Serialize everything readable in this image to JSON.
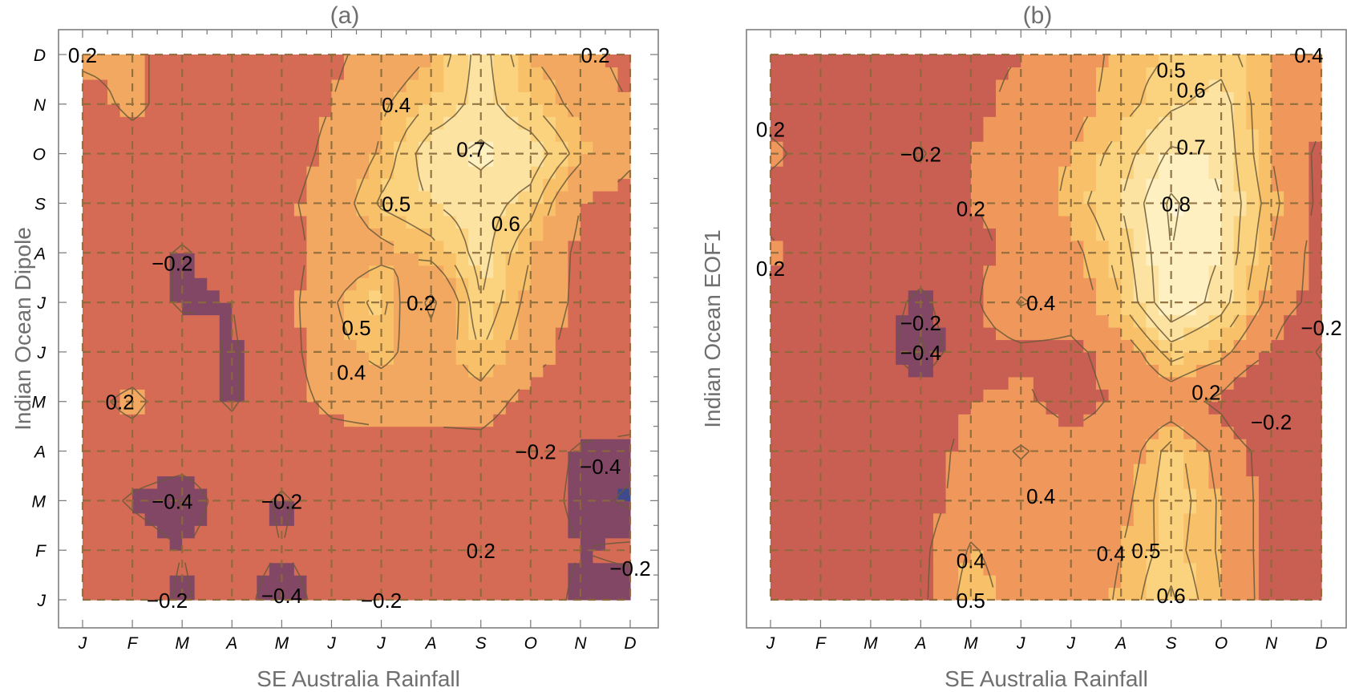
{
  "chart_data": [
    {
      "type": "heatmap",
      "subtype": "contour",
      "title": "(a)",
      "xlabel": "SE Australia Rainfall",
      "ylabel": "Indian Ocean Dipole",
      "x_ticks": [
        "J",
        "F",
        "M",
        "A",
        "M",
        "J",
        "J",
        "A",
        "S",
        "O",
        "N",
        "D"
      ],
      "y_ticks": [
        "J",
        "F",
        "M",
        "A",
        "M",
        "J",
        "J",
        "A",
        "S",
        "O",
        "N",
        "D"
      ],
      "show_y_ticks": true,
      "grid": true,
      "contour_levels": [
        -0.4,
        -0.2,
        0.2,
        0.4,
        0.5,
        0.6,
        0.7,
        0.8
      ],
      "z_rows_bottom_to_top": [
        [
          0.0,
          0.0,
          -0.25,
          0.0,
          -0.42,
          0.0,
          -0.15,
          0.0,
          0.05,
          0.05,
          -0.3,
          -0.3
        ],
        [
          0.0,
          0.0,
          -0.2,
          0.0,
          -0.2,
          0.0,
          0.0,
          0.05,
          0.1,
          0.0,
          -0.2,
          -0.15
        ],
        [
          0.0,
          -0.25,
          -0.42,
          0.0,
          -0.25,
          0.0,
          0.0,
          0.0,
          0.05,
          0.0,
          -0.3,
          -0.45
        ],
        [
          0.05,
          0.05,
          0.0,
          0.0,
          0.0,
          0.1,
          0.1,
          0.1,
          0.1,
          0.0,
          -0.25,
          -0.3
        ],
        [
          0.1,
          0.28,
          0.0,
          -0.25,
          0.1,
          0.25,
          0.3,
          0.3,
          0.33,
          0.1,
          0.05,
          0.0
        ],
        [
          0.0,
          0.0,
          0.0,
          -0.25,
          0.1,
          0.35,
          0.45,
          0.3,
          0.5,
          0.3,
          0.1,
          0.05
        ],
        [
          0.0,
          0.0,
          -0.25,
          -0.2,
          0.1,
          0.38,
          0.55,
          0.15,
          0.6,
          0.35,
          0.15,
          0.1
        ],
        [
          0.05,
          0.0,
          -0.25,
          0.0,
          0.1,
          0.3,
          0.35,
          0.45,
          0.65,
          0.4,
          0.15,
          0.1
        ],
        [
          0.05,
          0.05,
          0.05,
          0.1,
          0.15,
          0.3,
          0.52,
          0.6,
          0.66,
          0.55,
          0.2,
          0.1
        ],
        [
          0.05,
          0.1,
          0.1,
          0.1,
          0.1,
          0.25,
          0.42,
          0.68,
          0.72,
          0.68,
          0.45,
          0.25
        ],
        [
          0.1,
          0.25,
          0.1,
          0.1,
          0.1,
          0.2,
          0.38,
          0.5,
          0.65,
          0.5,
          0.35,
          0.2
        ],
        [
          0.25,
          0.25,
          0.1,
          0.1,
          0.1,
          0.15,
          0.3,
          0.4,
          0.65,
          0.4,
          0.3,
          0.1
        ]
      ],
      "annotations": [
        {
          "text": "0.2",
          "x": 0.0,
          "y": 11
        },
        {
          "text": "0.2",
          "x": 10.3,
          "y": 11
        },
        {
          "text": "0.4",
          "x": 6.3,
          "y": 10
        },
        {
          "text": "0.7",
          "x": 7.8,
          "y": 9.1
        },
        {
          "text": "0.5",
          "x": 6.3,
          "y": 8
        },
        {
          "text": "0.6",
          "x": 8.5,
          "y": 7.6
        },
        {
          "text": "-0.2",
          "x": 1.8,
          "y": 6.8
        },
        {
          "text": "0.2",
          "x": 6.8,
          "y": 6
        },
        {
          "text": "0.5",
          "x": 5.5,
          "y": 5.5
        },
        {
          "text": "0.4",
          "x": 5.4,
          "y": 4.6
        },
        {
          "text": "0.2",
          "x": 0.75,
          "y": 4
        },
        {
          "text": "-0.2",
          "x": 9.1,
          "y": 3
        },
        {
          "text": "-0.4",
          "x": 10.4,
          "y": 2.7
        },
        {
          "text": "-0.4",
          "x": 1.8,
          "y": 2
        },
        {
          "text": "-0.2",
          "x": 4.0,
          "y": 2
        },
        {
          "text": "0.2",
          "x": 8.0,
          "y": 1
        },
        {
          "text": "-0.2",
          "x": 11.0,
          "y": 0.65
        },
        {
          "text": "-0.2",
          "x": 1.7,
          "y": 0
        },
        {
          "text": "-0.4",
          "x": 4.0,
          "y": 0.1
        },
        {
          "text": "-0.2",
          "x": 6.0,
          "y": 0
        }
      ]
    },
    {
      "type": "heatmap",
      "subtype": "contour",
      "title": "(b)",
      "xlabel": "SE Australia Rainfall",
      "ylabel": "Indian Ocean EOF1",
      "x_ticks": [
        "J",
        "F",
        "M",
        "A",
        "M",
        "J",
        "J",
        "A",
        "S",
        "O",
        "N",
        "D"
      ],
      "y_ticks": [],
      "show_y_ticks": false,
      "grid": true,
      "contour_levels": [
        -0.4,
        -0.2,
        0.2,
        0.4,
        0.5,
        0.6,
        0.7,
        0.8
      ],
      "z_rows_bottom_to_top": [
        [
          0.05,
          0.05,
          0.1,
          0.15,
          0.5,
          0.3,
          0.3,
          0.42,
          0.62,
          0.4,
          0.1,
          0.05
        ],
        [
          0.05,
          0.05,
          0.1,
          0.15,
          0.42,
          0.3,
          0.3,
          0.4,
          0.55,
          0.38,
          0.1,
          0.05
        ],
        [
          0.05,
          0.05,
          0.05,
          0.1,
          0.3,
          0.3,
          0.3,
          0.35,
          0.58,
          0.38,
          0.1,
          0.05
        ],
        [
          0.05,
          0.05,
          0.05,
          0.05,
          0.3,
          0.42,
          0.3,
          0.3,
          0.55,
          0.35,
          0.1,
          0.05
        ],
        [
          0.05,
          0.05,
          0.05,
          0.05,
          0.2,
          0.25,
          0.1,
          0.25,
          0.3,
          0.15,
          -0.2,
          0.05
        ],
        [
          0.05,
          0.05,
          0.05,
          -0.45,
          0.1,
          0.15,
          0.15,
          0.3,
          0.55,
          0.45,
          0.2,
          -0.25
        ],
        [
          0.05,
          0.05,
          0.05,
          -0.3,
          0.15,
          0.42,
          0.3,
          0.5,
          0.8,
          0.65,
          0.35,
          0.1
        ],
        [
          0.25,
          0.05,
          0.05,
          0.05,
          0.15,
          0.25,
          0.35,
          0.55,
          0.8,
          0.7,
          0.4,
          0.1
        ],
        [
          0.1,
          0.05,
          0.05,
          0.05,
          0.2,
          0.25,
          0.45,
          0.6,
          0.82,
          0.7,
          0.45,
          0.15
        ],
        [
          0.25,
          0.1,
          0.05,
          -0.25,
          0.2,
          0.3,
          0.4,
          0.55,
          0.72,
          0.68,
          0.4,
          0.15
        ],
        [
          0.1,
          0.1,
          0.1,
          0.1,
          0.15,
          0.25,
          0.35,
          0.45,
          0.58,
          0.65,
          0.4,
          0.25
        ],
        [
          0.1,
          0.1,
          0.1,
          0.1,
          0.15,
          0.2,
          0.3,
          0.45,
          0.5,
          0.55,
          0.4,
          0.4
        ]
      ],
      "annotations": [
        {
          "text": "0.5",
          "x": 8.0,
          "y": 10.7
        },
        {
          "text": "0.6",
          "x": 8.4,
          "y": 10.3
        },
        {
          "text": "0.4",
          "x": 10.75,
          "y": 11
        },
        {
          "text": "0.2",
          "x": 0.0,
          "y": 9.5
        },
        {
          "text": "-0.2",
          "x": 3.0,
          "y": 9
        },
        {
          "text": "0.7",
          "x": 8.4,
          "y": 9.15
        },
        {
          "text": "0.2",
          "x": 4.0,
          "y": 7.9
        },
        {
          "text": "0.8",
          "x": 8.1,
          "y": 8
        },
        {
          "text": "0.2",
          "x": 0.0,
          "y": 6.7
        },
        {
          "text": "0.4",
          "x": 5.4,
          "y": 6
        },
        {
          "text": "-0.2",
          "x": 3.0,
          "y": 5.6
        },
        {
          "text": "-0.4",
          "x": 3.0,
          "y": 5
        },
        {
          "text": "-0.2",
          "x": 11.0,
          "y": 5.5
        },
        {
          "text": "0.2",
          "x": 8.7,
          "y": 4.2
        },
        {
          "text": "-0.2",
          "x": 10.0,
          "y": 3.6
        },
        {
          "text": "0.4",
          "x": 5.4,
          "y": 2.1
        },
        {
          "text": "0.4",
          "x": 4.0,
          "y": 0.8
        },
        {
          "text": "0.4",
          "x": 6.8,
          "y": 0.95
        },
        {
          "text": "0.5",
          "x": 7.5,
          "y": 1.0
        },
        {
          "text": "0.5",
          "x": 4.0,
          "y": 0
        },
        {
          "text": "0.6",
          "x": 8.0,
          "y": 0.1
        }
      ]
    }
  ],
  "colors": {
    "band_below_-0.4": "#3f4a8c",
    "band_-0.4_-0.2": "#834766",
    "band_-0.2_0.2_a": "#d66b55",
    "band_-0.2_0.2_b": "#c95f53",
    "band_0.2_0.4": "#f2a861",
    "band_0.2_0.4_b": "#f0975c",
    "band_0.4_0.5": "#f8c068",
    "band_0.5_0.6": "#fbd27e",
    "band_0.6_0.7": "#fde3a2",
    "band_0.7_0.8": "#fef0c0",
    "band_above_0.8": "#fff6d6",
    "grid": "#8a6a3a",
    "contour_line": "#6b5a3a",
    "frame": "#777777"
  }
}
